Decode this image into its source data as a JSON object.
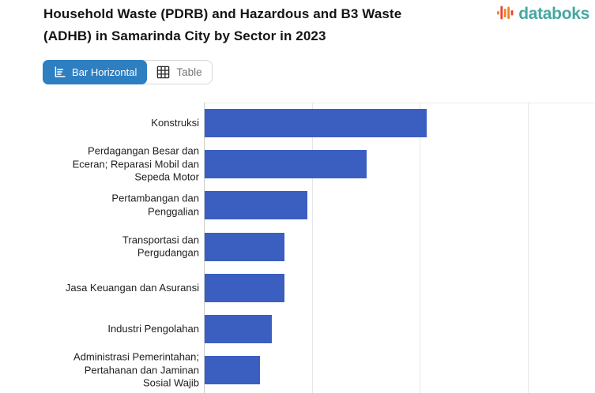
{
  "header": {
    "title": "Household Waste (PDRB) and Hazardous and B3 Waste (ADHB) in Samarinda City by Sector in 2023",
    "brand": {
      "name": "databoks",
      "text_color": "#48a7a2",
      "icon_colors": {
        "orange": "#f5821f",
        "red": "#ee4036"
      }
    }
  },
  "toolbar": {
    "view_toggle": [
      {
        "label": "Bar Horizontal",
        "icon": "bar-horizontal-icon",
        "active": true
      },
      {
        "label": "Table",
        "icon": "table-icon",
        "active": false
      }
    ],
    "active_bg": "#2e7fc1"
  },
  "chart_data": {
    "type": "bar",
    "orientation": "horizontal",
    "title": "Household Waste (PDRB) and Hazardous and B3 Waste (ADHB) in Samarinda City by Sector in 2023",
    "categories": [
      "Konstruksi",
      "Perdagangan Besar dan Eceran; Reparasi Mobil dan Sepeda Motor",
      "Pertambangan dan Penggalian",
      "Transportasi dan Pergudangan",
      "Jasa Keuangan dan Asuransi",
      "Industri Pengolahan",
      "Administrasi Pemerintahan; Pertahanan dan Jaminan Sosial Wajib"
    ],
    "values": [
      2.06,
      1.5,
      0.95,
      0.74,
      0.74,
      0.62,
      0.51
    ],
    "values_pct_of_max": [
      100,
      73,
      46,
      36,
      36,
      30,
      25
    ],
    "value_axis_note": "x-axis tick labels not visible in screenshot; values estimated in gridline units (1 unit = one gridline interval)",
    "xlim": [
      0,
      3.63
    ],
    "gridline_units": [
      1,
      2,
      3
    ],
    "grid": true,
    "legend": "none",
    "bar_color": "#3b5fc1",
    "xlabel": "",
    "ylabel": ""
  }
}
